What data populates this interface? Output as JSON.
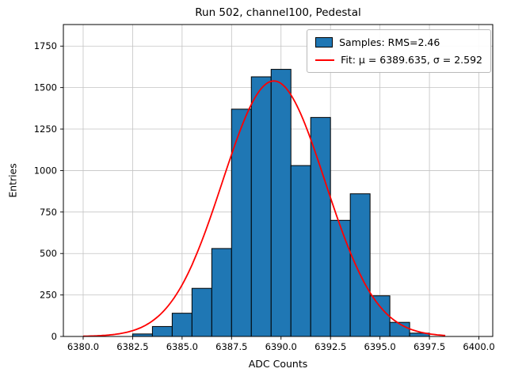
{
  "chart_data": {
    "type": "bar",
    "subtype": "histogram-with-gaussian-fit",
    "title": "Run 502, channel100, Pedestal",
    "xlabel": "ADC Counts",
    "ylabel": "Entries",
    "xlim": [
      6379.0,
      6400.7
    ],
    "ylim": [
      0,
      1880
    ],
    "xticks": [
      6380.0,
      6382.5,
      6385.0,
      6387.5,
      6390.0,
      6392.5,
      6395.0,
      6397.5,
      6400.0
    ],
    "yticks": [
      0,
      250,
      500,
      750,
      1000,
      1250,
      1500,
      1750
    ],
    "grid": true,
    "bin_edges": [
      6382.5,
      6383.5,
      6384.5,
      6385.5,
      6386.5,
      6387.5,
      6388.5,
      6389.5,
      6390.5,
      6391.5,
      6392.5,
      6393.5,
      6394.5,
      6395.5,
      6396.5,
      6397.5
    ],
    "counts": [
      15,
      60,
      140,
      290,
      530,
      1370,
      1565,
      1610,
      1030,
      1320,
      700,
      860,
      245,
      85,
      20
    ],
    "fit": {
      "mu": 6389.635,
      "sigma": 2.592,
      "amplitude": 1540,
      "x_range": [
        6380.0,
        6398.3
      ]
    },
    "legend": [
      {
        "label": "Samples: RMS=2.46",
        "marker": "patch",
        "color": "#1f77b4"
      },
      {
        "label": "Fit: μ = 6389.635, σ = 2.592",
        "marker": "line",
        "color": "#ff0000"
      }
    ],
    "colors": {
      "bar_fill": "#1f77b4",
      "bar_edge": "#000000",
      "fit_line": "#ff0000",
      "grid": "#c3c3c3",
      "spine": "#000000"
    }
  }
}
